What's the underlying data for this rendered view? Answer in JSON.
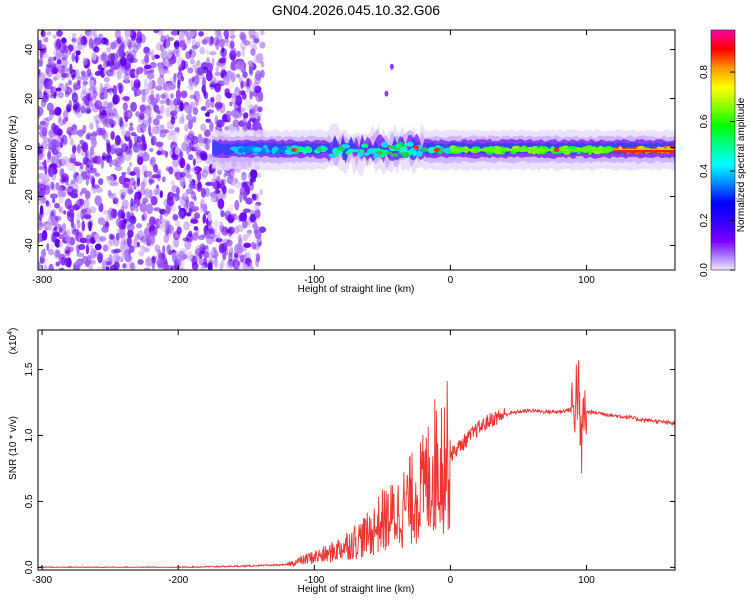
{
  "title": "GN04.2026.045.10.32.G06",
  "chart_data": [
    {
      "type": "heatmap",
      "name": "spectrogram",
      "xlabel": "Height of straight line (km)",
      "ylabel": "Frequency (Hz)",
      "xlim": [
        -303,
        165
      ],
      "ylim": [
        -50,
        48
      ],
      "xticks": [
        -300,
        -200,
        -100,
        0,
        100
      ],
      "yticks": [
        -40,
        -20,
        0,
        20,
        40
      ],
      "colorbar": {
        "label": "Normalized spectral amplitude",
        "range": [
          0,
          0.97
        ],
        "ticks": [
          0.0,
          0.2,
          0.4,
          0.6,
          0.8
        ]
      },
      "description_regions": [
        {
          "x": [
            -303,
            -140
          ],
          "freq": [
            -50,
            48
          ],
          "level": "low noise (purple)"
        },
        {
          "x": [
            -170,
            165
          ],
          "freq": [
            -6,
            4
          ],
          "level": "signal band near 0 Hz, cyan-green-red"
        }
      ]
    },
    {
      "type": "line",
      "name": "snr",
      "xlabel": "Height of straight line (km)",
      "ylabel": "SNR (10 * v/v)",
      "multiplier": "(x10",
      "multiplier_exp": "4",
      "xlim": [
        -303,
        165
      ],
      "ylim": [
        -0.02,
        1.8
      ],
      "xticks": [
        -300,
        -200,
        -100,
        0,
        100
      ],
      "yticks": [
        0.0,
        0.5,
        1.0,
        1.5
      ],
      "color": "#ee3333",
      "series": [
        {
          "name": "SNR",
          "x": [
            -303,
            -200,
            -150,
            -120,
            -110,
            -100,
            -90,
            -80,
            -70,
            -60,
            -50,
            -40,
            -30,
            -20,
            -15,
            -10,
            0,
            10,
            20,
            30,
            40,
            50,
            60,
            70,
            80,
            85,
            90,
            92,
            94,
            95,
            96,
            98,
            100,
            110,
            120,
            130,
            140,
            150,
            165
          ],
          "y": [
            0.0,
            0.0,
            0.01,
            0.02,
            0.05,
            0.08,
            0.1,
            0.15,
            0.2,
            0.25,
            0.35,
            0.4,
            0.5,
            0.6,
            0.7,
            0.8,
            0.85,
            0.95,
            1.05,
            1.12,
            1.16,
            1.18,
            1.19,
            1.18,
            1.18,
            1.19,
            1.2,
            1.3,
            1.4,
            1.05,
            0.9,
            1.15,
            1.18,
            1.17,
            1.15,
            1.14,
            1.12,
            1.11,
            1.09
          ]
        }
      ]
    }
  ]
}
